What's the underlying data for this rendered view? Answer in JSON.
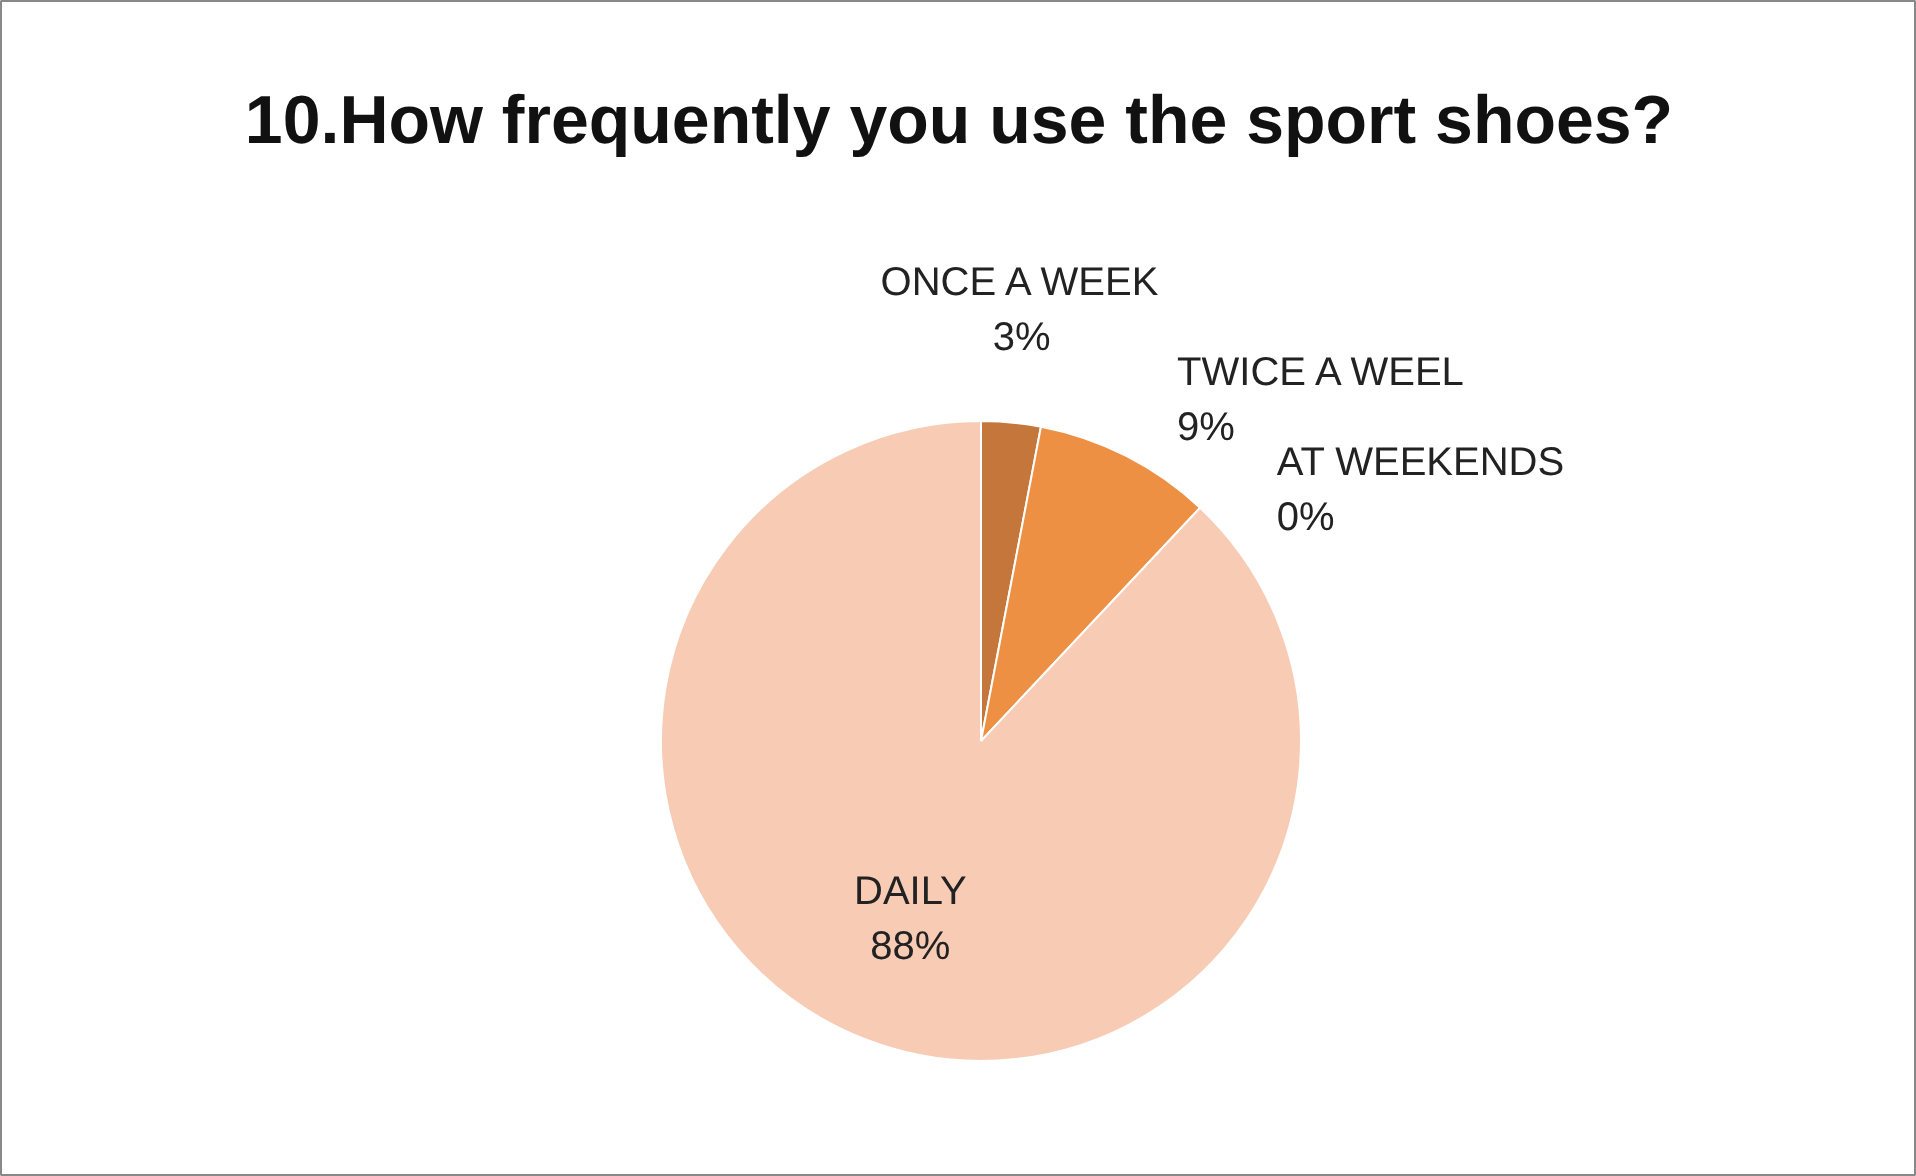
{
  "chart_data": {
    "type": "pie",
    "title": "10.How frequently you use the sport shoes?",
    "categories": [
      "ONCE A WEEK",
      "TWICE A WEEL",
      "AT WEEKENDS",
      "DAILY"
    ],
    "values": [
      3,
      9,
      0,
      88
    ],
    "colors": [
      "#c5763a",
      "#ed9044",
      "#f4b183",
      "#f8cbb4"
    ],
    "value_labels": [
      "3%",
      "9%",
      "0%",
      "88%"
    ]
  }
}
